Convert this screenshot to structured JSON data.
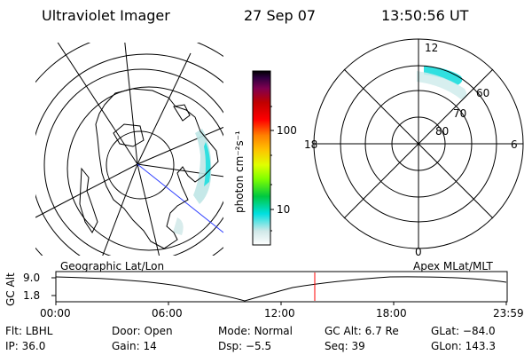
{
  "header": {
    "instrument": "Ultraviolet Imager",
    "date": "27 Sep 07",
    "time": "13:50:56 UT"
  },
  "colorbar": {
    "unit_label": "photon cm⁻²s⁻¹",
    "ticks": [
      {
        "value": 100,
        "label": "100"
      },
      {
        "value": 10,
        "label": "10"
      }
    ],
    "colors": [
      "#ffffff",
      "#cfe8e8",
      "#00e0e0",
      "#00d040",
      "#80ff00",
      "#e0ff00",
      "#ffd000",
      "#ff8000",
      "#ff0000",
      "#c00000",
      "#800040",
      "#400060",
      "#000000"
    ]
  },
  "polar_plot": {
    "mlt_labels": {
      "top": "12",
      "left": "18",
      "right": "6",
      "bottom": "0"
    },
    "lat_labels": [
      "60",
      "70",
      "80"
    ]
  },
  "timeline": {
    "left_label": "Geographic Lat/Lon",
    "right_label": "Apex MLat/MLT",
    "y_axis_label": "GC Alt",
    "y_ticks": [
      "9.0",
      "1.8"
    ],
    "x_ticks": [
      "00:00",
      "06:00",
      "12:00",
      "18:00",
      "23:59"
    ],
    "current_marker_color": "#ff0000"
  },
  "info_row1": [
    {
      "label": "Flt:",
      "value": "LBHL"
    },
    {
      "label": "Door:",
      "value": "Open"
    },
    {
      "label": "Mode:",
      "value": "Normal"
    },
    {
      "label": "GC Alt:",
      "value": "6.7 Re"
    },
    {
      "label": "GLat:",
      "value": "−84.0"
    }
  ],
  "info_row2": [
    {
      "label": "IP:",
      "value": "36.0"
    },
    {
      "label": "Gain:",
      "value": "14"
    },
    {
      "label": "Dsp:",
      "value": "−5.5"
    },
    {
      "label": "Seq:",
      "value": "39"
    },
    {
      "label": "GLon:",
      "value": "143.3"
    }
  ]
}
